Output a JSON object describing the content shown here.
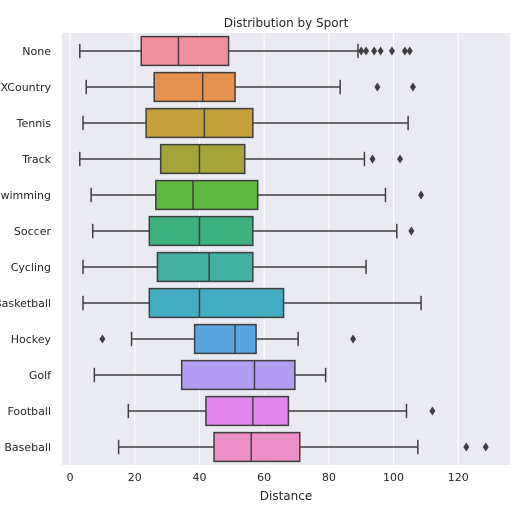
{
  "chart_data": {
    "type": "boxplot",
    "title": "Distribution by Sport",
    "xlabel": "Distance",
    "ylabel": "",
    "xlim": [
      -2.5,
      136
    ],
    "x_ticks": [
      0,
      20,
      40,
      60,
      80,
      100,
      120
    ],
    "grid": true,
    "orientation": "horizontal",
    "categories": [
      "None",
      "XCountry",
      "Tennis",
      "Track",
      "Swimming",
      "Soccer",
      "Cycling",
      "Basketball",
      "Hockey",
      "Golf",
      "Football",
      "Baseball"
    ],
    "colors": [
      "#f0909c",
      "#e6924e",
      "#c4a03a",
      "#a4a43a",
      "#5fb83f",
      "#3fb080",
      "#41b0a2",
      "#43acc0",
      "#5aa4e0",
      "#b09cf0",
      "#e086ec",
      "#ec8ec8"
    ],
    "series": [
      {
        "category": "None",
        "whisker_low": 3,
        "q1": 22,
        "median": 33.5,
        "q3": 49,
        "whisker_high": 89,
        "outliers": [
          90,
          91.5,
          94,
          96,
          99.5,
          103.5,
          105
        ]
      },
      {
        "category": "XCountry",
        "whisker_low": 5,
        "q1": 26,
        "median": 41,
        "q3": 51,
        "whisker_high": 83.5,
        "outliers": [
          95,
          106
        ]
      },
      {
        "category": "Tennis",
        "whisker_low": 4,
        "q1": 23.5,
        "median": 41.5,
        "q3": 56.5,
        "whisker_high": 104.5,
        "outliers": []
      },
      {
        "category": "Track",
        "whisker_low": 3,
        "q1": 28,
        "median": 40,
        "q3": 54,
        "whisker_high": 91,
        "outliers": [
          93.5,
          102
        ]
      },
      {
        "category": "Swimming",
        "whisker_low": 6.5,
        "q1": 26.5,
        "median": 38,
        "q3": 58,
        "whisker_high": 97.5,
        "outliers": [
          108.5
        ]
      },
      {
        "category": "Soccer",
        "whisker_low": 7,
        "q1": 24.5,
        "median": 40,
        "q3": 56.5,
        "whisker_high": 101,
        "outliers": [
          105.5
        ]
      },
      {
        "category": "Cycling",
        "whisker_low": 4,
        "q1": 27,
        "median": 43,
        "q3": 56.5,
        "whisker_high": 91.5,
        "outliers": []
      },
      {
        "category": "Basketball",
        "whisker_low": 4,
        "q1": 24.5,
        "median": 40,
        "q3": 66,
        "whisker_high": 108.5,
        "outliers": []
      },
      {
        "category": "Hockey",
        "whisker_low": 19,
        "q1": 38.5,
        "median": 51,
        "q3": 57.5,
        "whisker_high": 70.5,
        "outliers": [
          10,
          87.5
        ]
      },
      {
        "category": "Golf",
        "whisker_low": 7.5,
        "q1": 34.5,
        "median": 57,
        "q3": 69.5,
        "whisker_high": 79,
        "outliers": []
      },
      {
        "category": "Football",
        "whisker_low": 18,
        "q1": 42,
        "median": 56.5,
        "q3": 67.5,
        "whisker_high": 104,
        "outliers": [
          112
        ]
      },
      {
        "category": "Baseball",
        "whisker_low": 15,
        "q1": 44.5,
        "median": 56,
        "q3": 71,
        "whisker_high": 107.5,
        "outliers": [
          122.5,
          128.5
        ]
      }
    ]
  }
}
